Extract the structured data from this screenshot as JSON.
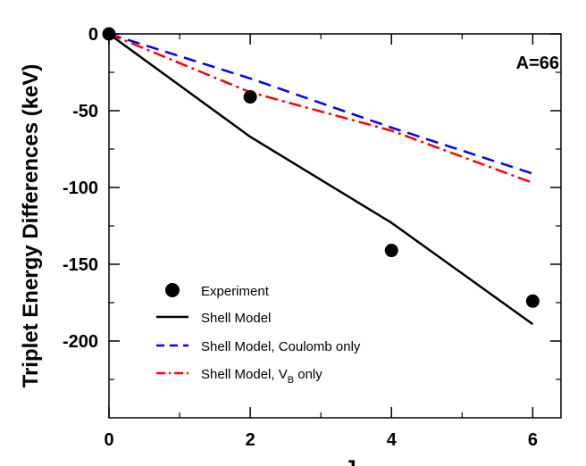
{
  "chart_data": {
    "type": "line",
    "xlabel": "J",
    "ylabel": "Triplet Energy Differences (keV)",
    "annotation": "A=66",
    "xlim": [
      0,
      6.4
    ],
    "ylim": [
      -250,
      0
    ],
    "x_ticks": [
      0,
      2,
      4,
      6
    ],
    "x_tick_labels": [
      "0",
      "2",
      "4",
      "6"
    ],
    "y_ticks": [
      0,
      -50,
      -100,
      -150,
      -200
    ],
    "y_tick_labels": [
      "0",
      "-50",
      "-100",
      "-150",
      "-200"
    ],
    "grid": false,
    "legend_position": "bottom-left",
    "experiment": {
      "name": "Experiment",
      "x": [
        0,
        2,
        4,
        6
      ],
      "y": [
        0,
        -41,
        -141,
        -174
      ],
      "color": "#000000"
    },
    "series": [
      {
        "name": "Shell Model",
        "x": [
          0,
          2,
          4,
          6
        ],
        "y": [
          0,
          -67,
          -123,
          -189
        ],
        "color": "#000000",
        "style": "solid"
      },
      {
        "name": "Shell Model, Coulomb only",
        "x": [
          0,
          2,
          4,
          6
        ],
        "y": [
          0,
          -29,
          -61,
          -91
        ],
        "color": "#0000ff",
        "style": "dashed"
      },
      {
        "name_main": "Shell Model, V",
        "name_sub": "B",
        "name_tail": " only",
        "x": [
          0,
          2,
          4,
          6
        ],
        "y": [
          0,
          -38,
          -63,
          -97
        ],
        "color": "#ff0000",
        "style": "dashdot"
      }
    ]
  }
}
